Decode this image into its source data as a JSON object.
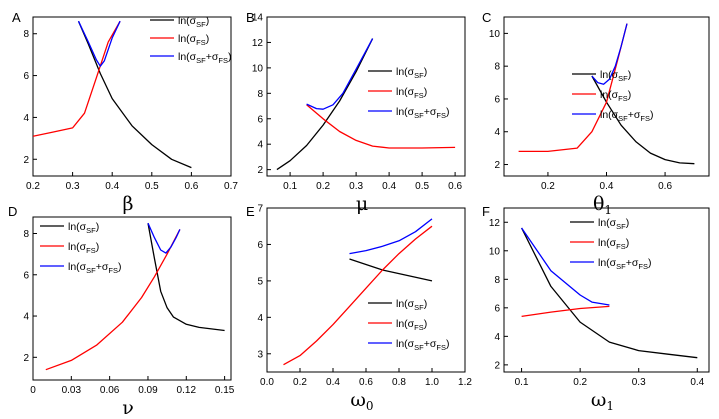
{
  "colors": {
    "sf": "#000000",
    "fs": "#ff0000",
    "sum": "#0000ff"
  },
  "legend_text": {
    "prefix": "ln(",
    "sigma": "σ",
    "sf_sub": "SF",
    "fs_sub": "FS",
    "plus": "+",
    "close": ")"
  },
  "chart_data": [
    {
      "type": "line",
      "letter": "A",
      "xlabel": "β",
      "xlabel_sub": "",
      "xlim": [
        0.2,
        0.7
      ],
      "ylim": [
        1.2,
        8.8
      ],
      "xticks": [
        "0.2",
        "0.3",
        "0.4",
        "0.5",
        "0.6",
        "0.7"
      ],
      "yticks": [
        "2",
        "4",
        "6",
        "8"
      ],
      "legend_location": "top-right",
      "grid": false,
      "series": [
        {
          "key": "sf",
          "name": "ln(σSF)",
          "x": [
            0.315,
            0.34,
            0.37,
            0.4,
            0.45,
            0.5,
            0.55,
            0.6
          ],
          "y": [
            8.6,
            7.5,
            6.1,
            4.9,
            3.6,
            2.7,
            2.0,
            1.6
          ]
        },
        {
          "key": "fs",
          "name": "ln(σFS)",
          "x": [
            0.2,
            0.25,
            0.3,
            0.33,
            0.36,
            0.39,
            0.42
          ],
          "y": [
            3.1,
            3.3,
            3.5,
            4.2,
            5.9,
            7.6,
            8.6
          ]
        },
        {
          "key": "sum",
          "name": "ln(σSF+σFS)",
          "x": [
            0.315,
            0.34,
            0.36,
            0.37,
            0.38,
            0.4,
            0.42
          ],
          "y": [
            8.6,
            7.6,
            6.75,
            6.45,
            6.7,
            7.8,
            8.6
          ]
        }
      ]
    },
    {
      "type": "line",
      "letter": "B",
      "xlabel": "μ",
      "xlabel_sub": "",
      "xlim": [
        0.03,
        0.63
      ],
      "ylim": [
        1.5,
        14
      ],
      "xticks": [
        "0.1",
        "0.2",
        "0.3",
        "0.4",
        "0.5",
        "0.6"
      ],
      "yticks": [
        "2",
        "4",
        "6",
        "8",
        "10",
        "12",
        "14"
      ],
      "legend_location": "top-right",
      "grid": false,
      "series": [
        {
          "key": "sf",
          "name": "ln(σSF)",
          "x": [
            0.06,
            0.1,
            0.15,
            0.2,
            0.25,
            0.3,
            0.35
          ],
          "y": [
            2.0,
            2.7,
            3.9,
            5.5,
            7.4,
            9.7,
            12.3
          ]
        },
        {
          "key": "fs",
          "name": "ln(σFS)",
          "x": [
            0.15,
            0.2,
            0.25,
            0.3,
            0.35,
            0.4,
            0.5,
            0.6
          ],
          "y": [
            7.1,
            6.0,
            5.0,
            4.3,
            3.85,
            3.7,
            3.7,
            3.75
          ]
        },
        {
          "key": "sum",
          "name": "ln(σSF+σFS)",
          "x": [
            0.15,
            0.18,
            0.2,
            0.23,
            0.26,
            0.3,
            0.35
          ],
          "y": [
            7.15,
            6.8,
            6.75,
            7.1,
            8.0,
            9.9,
            12.3
          ]
        }
      ]
    },
    {
      "type": "line",
      "letter": "C",
      "xlabel": "θ",
      "xlabel_sub": "1",
      "xlim": [
        0.05,
        0.75
      ],
      "ylim": [
        1.3,
        11
      ],
      "xticks": [
        "0.2",
        "0.4",
        "0.6"
      ],
      "yticks": [
        "2",
        "4",
        "6",
        "8",
        "10"
      ],
      "legend_location": "right",
      "grid": false,
      "series": [
        {
          "key": "sf",
          "name": "ln(σSF)",
          "x": [
            0.35,
            0.4,
            0.45,
            0.5,
            0.55,
            0.6,
            0.65,
            0.7
          ],
          "y": [
            7.4,
            5.8,
            4.4,
            3.4,
            2.7,
            2.3,
            2.1,
            2.05
          ]
        },
        {
          "key": "fs",
          "name": "ln(σFS)",
          "x": [
            0.1,
            0.2,
            0.3,
            0.35,
            0.4,
            0.44,
            0.47
          ],
          "y": [
            2.8,
            2.8,
            3.0,
            4.0,
            5.8,
            8.5,
            10.6
          ]
        },
        {
          "key": "sum",
          "name": "ln(σSF+σFS)",
          "x": [
            0.35,
            0.37,
            0.39,
            0.41,
            0.43,
            0.45,
            0.47
          ],
          "y": [
            7.4,
            7.0,
            6.9,
            7.2,
            8.0,
            9.2,
            10.6
          ]
        }
      ]
    },
    {
      "type": "line",
      "letter": "D",
      "xlabel": "ν",
      "xlabel_sub": "",
      "xlim": [
        0.0,
        0.155
      ],
      "ylim": [
        0.9,
        8.8
      ],
      "xticks": [
        "0",
        "0.03",
        "0.06",
        "0.09",
        "0.12",
        "0.15"
      ],
      "yticks": [
        "2",
        "4",
        "6",
        "8"
      ],
      "legend_location": "top-left",
      "grid": false,
      "series": [
        {
          "key": "sf",
          "name": "ln(σSF)",
          "x": [
            0.09,
            0.095,
            0.1,
            0.105,
            0.11,
            0.12,
            0.13,
            0.15
          ],
          "y": [
            8.5,
            6.8,
            5.2,
            4.4,
            3.95,
            3.6,
            3.45,
            3.3
          ]
        },
        {
          "key": "fs",
          "name": "ln(σFS)",
          "x": [
            0.01,
            0.03,
            0.05,
            0.07,
            0.085,
            0.095,
            0.105,
            0.115
          ],
          "y": [
            1.4,
            1.85,
            2.6,
            3.7,
            4.9,
            5.9,
            7.0,
            8.2
          ]
        },
        {
          "key": "sum",
          "name": "ln(σSF+σFS)",
          "x": [
            0.09,
            0.095,
            0.1,
            0.104,
            0.108,
            0.112,
            0.115
          ],
          "y": [
            8.5,
            7.8,
            7.2,
            7.05,
            7.35,
            7.8,
            8.2
          ]
        }
      ]
    },
    {
      "type": "line",
      "letter": "E",
      "xlabel": "ω",
      "xlabel_sub": "0",
      "xlim": [
        0.0,
        1.2
      ],
      "ylim": [
        2.5,
        7.0
      ],
      "xticks": [
        "0.0",
        "0.2",
        "0.4",
        "0.6",
        "0.8",
        "1.0",
        "1.2"
      ],
      "yticks": [
        "3",
        "4",
        "5",
        "6",
        "7"
      ],
      "legend_location": "bottom-right",
      "grid": false,
      "series": [
        {
          "key": "sf",
          "name": "ln(σSF)",
          "x": [
            0.5,
            0.6,
            0.7,
            0.8,
            0.9,
            1.0
          ],
          "y": [
            5.6,
            5.45,
            5.3,
            5.2,
            5.1,
            5.0
          ]
        },
        {
          "key": "fs",
          "name": "ln(σFS)",
          "x": [
            0.1,
            0.2,
            0.3,
            0.4,
            0.5,
            0.6,
            0.7,
            0.8,
            0.9,
            1.0
          ],
          "y": [
            2.7,
            2.95,
            3.35,
            3.8,
            4.3,
            4.8,
            5.3,
            5.75,
            6.15,
            6.5
          ]
        },
        {
          "key": "sum",
          "name": "ln(σSF+σFS)",
          "x": [
            0.5,
            0.6,
            0.7,
            0.8,
            0.9,
            1.0
          ],
          "y": [
            5.75,
            5.83,
            5.95,
            6.1,
            6.35,
            6.7
          ]
        }
      ]
    },
    {
      "type": "line",
      "letter": "F",
      "xlabel": "ω",
      "xlabel_sub": "1",
      "xlim": [
        0.07,
        0.42
      ],
      "ylim": [
        1.5,
        13
      ],
      "xticks": [
        "0.1",
        "0.2",
        "0.3",
        "0.4"
      ],
      "yticks": [
        "2",
        "4",
        "6",
        "8",
        "10",
        "12"
      ],
      "legend_location": "top-right",
      "grid": false,
      "series": [
        {
          "key": "sf",
          "name": "ln(σSF)",
          "x": [
            0.1,
            0.15,
            0.2,
            0.25,
            0.3,
            0.35,
            0.4
          ],
          "y": [
            11.6,
            7.5,
            5.0,
            3.6,
            3.0,
            2.75,
            2.5
          ]
        },
        {
          "key": "fs",
          "name": "ln(σFS)",
          "x": [
            0.1,
            0.15,
            0.2,
            0.25
          ],
          "y": [
            5.4,
            5.7,
            5.95,
            6.1
          ]
        },
        {
          "key": "sum",
          "name": "ln(σSF+σFS)",
          "x": [
            0.1,
            0.15,
            0.2,
            0.22,
            0.25
          ],
          "y": [
            11.6,
            8.6,
            6.9,
            6.4,
            6.2
          ]
        }
      ]
    }
  ]
}
